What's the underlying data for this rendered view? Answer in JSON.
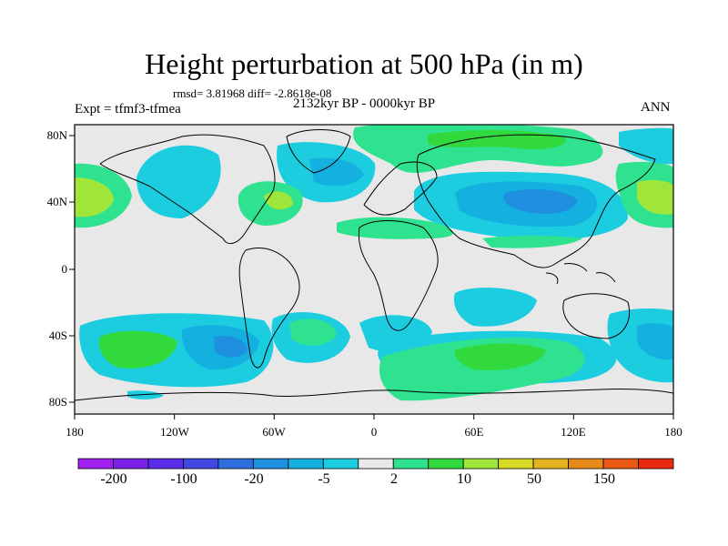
{
  "title": "Height perturbation at 500 hPa (in m)",
  "stats_line": "rmsd= 3.81968 diff= -2.8618e-08",
  "period": "2132kyr BP - 0000kyr BP",
  "experiment": "Expt = tfmf3-tfmea",
  "season": "ANN",
  "lat_labels": [
    "80N",
    "40N",
    "0",
    "40S",
    "80S"
  ],
  "lon_labels": [
    "180",
    "120W",
    "60W",
    "0",
    "60E",
    "120E",
    "180"
  ],
  "colorbar": {
    "colors": [
      "#a020f0",
      "#7c21ea",
      "#5a2ce8",
      "#3f48e2",
      "#2f6fdd",
      "#1f8fe0",
      "#14b0e0",
      "#1ccde0",
      "#e8e8e8",
      "#2fe28f",
      "#32d93c",
      "#a0e63a",
      "#d8d827",
      "#e6b320",
      "#e88a1a",
      "#ea5a14",
      "#e82a10"
    ],
    "labels": [
      "-200",
      "-100",
      "-20",
      "-5",
      "2",
      "10",
      "50",
      "150"
    ]
  },
  "map_colors": {
    "neutral": "#e8e8e8",
    "light_green": "#2fe28f",
    "green": "#32d93c",
    "yellow_green": "#a0e63a",
    "light_blue": "#1ccde0",
    "blue": "#14b0e0",
    "mid_blue": "#1f8fe0"
  }
}
